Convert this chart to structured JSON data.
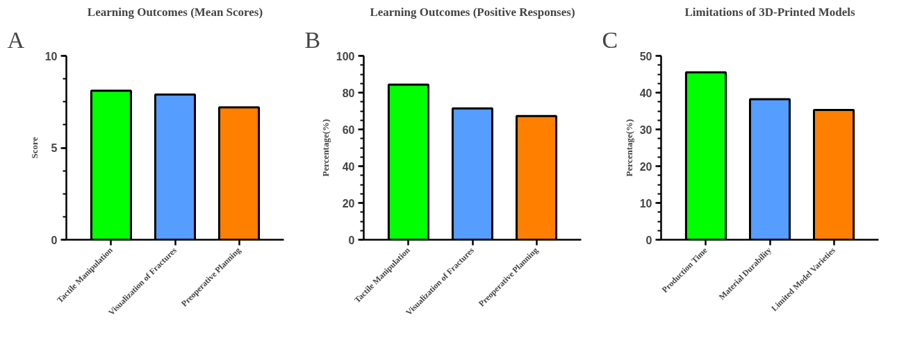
{
  "chart_data": [
    {
      "type": "bar",
      "title": "Learning Outcomes (Mean Scores)",
      "ylabel": "Score",
      "annotations": [
        "A"
      ],
      "categories": [
        "Tactile Manipulation",
        "Visualization of Fractures",
        "Preoperative Planning"
      ],
      "values": [
        8.1,
        7.9,
        7.2
      ],
      "colors": [
        "#00ff00",
        "#559dff",
        "#ff7f00"
      ],
      "ylim": [
        0,
        10
      ],
      "yticks": [
        0,
        5,
        10
      ],
      "grid": false
    },
    {
      "type": "bar",
      "title": "Learning Outcomes (Positive Responses)",
      "ylabel": "Percentage(%)",
      "annotations": [
        "B"
      ],
      "categories": [
        "Tactile Manipulation",
        "Visualization of Fractures",
        "Preoperative Planning"
      ],
      "values": [
        84.3,
        71.4,
        67.3
      ],
      "colors": [
        "#00ff00",
        "#559dff",
        "#ff7f00"
      ],
      "ylim": [
        0,
        100
      ],
      "yticks": [
        0,
        20,
        40,
        60,
        80,
        100
      ],
      "grid": false
    },
    {
      "type": "bar",
      "title": "Limitations of 3D-Printed Models",
      "ylabel": "Percentage(%)",
      "annotations": [
        "C"
      ],
      "categories": [
        "Production Time",
        "Material Durability",
        "Limited Model Varieties"
      ],
      "values": [
        45.5,
        38.2,
        35.3
      ],
      "colors": [
        "#00ff00",
        "#559dff",
        "#ff7f00"
      ],
      "ylim": [
        0,
        50
      ],
      "yticks": [
        0,
        10,
        20,
        30,
        40,
        50
      ],
      "grid": false
    }
  ]
}
